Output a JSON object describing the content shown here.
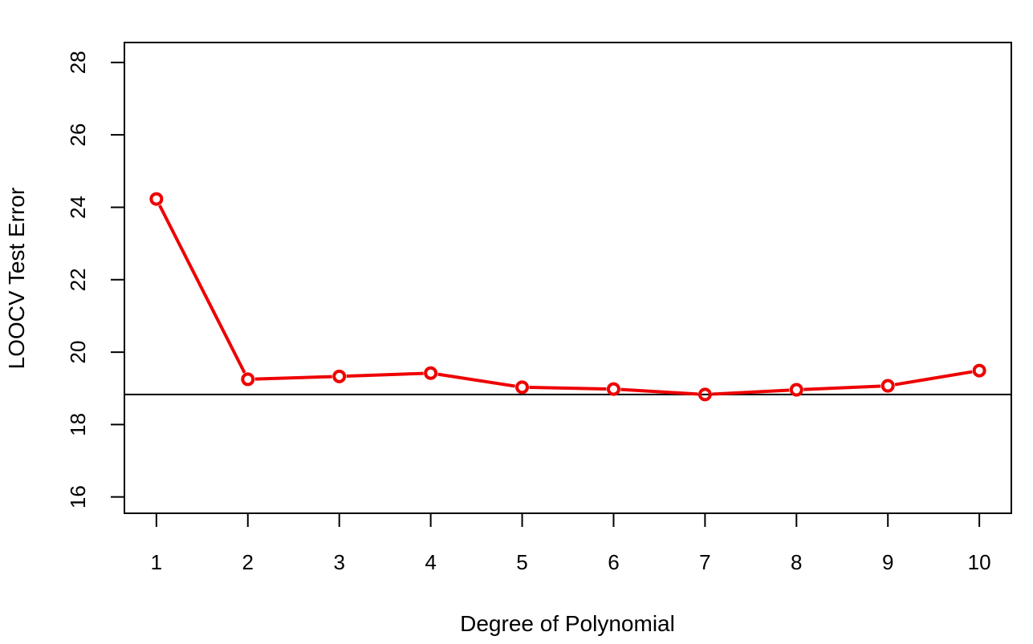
{
  "chart_data": {
    "type": "line",
    "title": "",
    "xlabel": "Degree of Polynomial",
    "ylabel": "LOOCV Test Error",
    "x": [
      1,
      2,
      3,
      4,
      5,
      6,
      7,
      8,
      9,
      10
    ],
    "series": [
      {
        "values": [
          24.23,
          19.25,
          19.33,
          19.42,
          19.03,
          18.98,
          18.83,
          18.96,
          19.07,
          19.49
        ],
        "color": "#ee0000",
        "marker": "open-circle"
      }
    ],
    "reference_line": {
      "y": 18.83,
      "orientation": "horizontal",
      "color": "#000000"
    },
    "xlim": [
      0.65,
      10.35
    ],
    "ylim": [
      15.55,
      28.55
    ],
    "x_ticks": [
      "1",
      "2",
      "3",
      "4",
      "5",
      "6",
      "7",
      "8",
      "9",
      "10"
    ],
    "y_ticks": [
      "16",
      "18",
      "20",
      "22",
      "24",
      "26",
      "28"
    ],
    "y_tick_values": [
      16,
      18,
      20,
      22,
      24,
      26,
      28
    ],
    "grid": false,
    "legend": "none",
    "box": true
  }
}
